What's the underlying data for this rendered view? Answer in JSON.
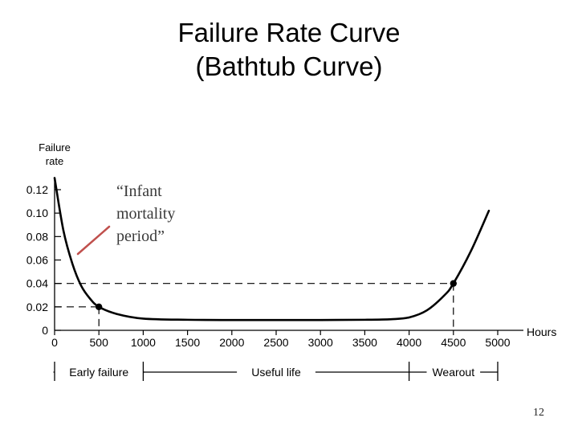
{
  "slide": {
    "title_line1": "Failure Rate Curve",
    "title_line2": "(Bathtub Curve)",
    "page_number": "12",
    "annotation_line1": "“Infant",
    "annotation_line2": "mortality",
    "annotation_line3": "period”",
    "annotation_arrow_color": "#c0504d"
  },
  "chart_data": {
    "type": "line",
    "title": "",
    "ylabel": "Failure rate",
    "xlabel": "Hours",
    "xlim": [
      0,
      5000
    ],
    "ylim": [
      0,
      0.12
    ],
    "x_ticks": [
      "0",
      "500",
      "1000",
      "1500",
      "2000",
      "2500",
      "3000",
      "3500",
      "4000",
      "4500",
      "5000"
    ],
    "y_ticks": [
      "0",
      "0.02",
      "0.04",
      "0.06",
      "0.08",
      "0.10",
      "0.12"
    ],
    "x": [
      0,
      100,
      200,
      300,
      400,
      500,
      700,
      1000,
      1500,
      2000,
      2500,
      3000,
      3500,
      3800,
      4000,
      4200,
      4400,
      4500,
      4700,
      4900
    ],
    "series": [
      {
        "values": [
          0.13,
          0.085,
          0.057,
          0.038,
          0.027,
          0.02,
          0.014,
          0.01,
          0.009,
          0.0088,
          0.0088,
          0.0088,
          0.009,
          0.0095,
          0.011,
          0.017,
          0.03,
          0.04,
          0.068,
          0.102
        ]
      }
    ],
    "marked_points": [
      {
        "x": 500,
        "y": 0.02
      },
      {
        "x": 4500,
        "y": 0.04
      }
    ],
    "periods": [
      {
        "label": "Early failure",
        "from": 0,
        "to": 1000
      },
      {
        "label": "Useful life",
        "from": 1000,
        "to": 4000
      },
      {
        "label": "Wearout",
        "from": 4000,
        "to": 5000
      }
    ],
    "grid": false,
    "line_color": "#000000"
  }
}
